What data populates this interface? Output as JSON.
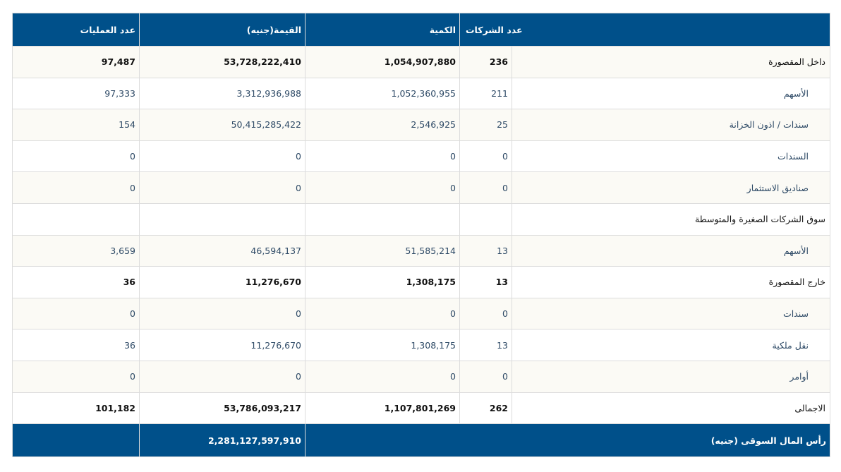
{
  "header": {
    "count": "عدد الشركات",
    "quantity": "الكمية",
    "value": "القيمة(جنيه)",
    "trades": "عدد العمليات"
  },
  "rows": [
    {
      "label": "داخل المقصورة",
      "count": "236",
      "quantity": "1,054,907,880",
      "value": "53,728,222,410",
      "trades": "97,487",
      "type": "bold"
    },
    {
      "label": "الأسهم",
      "count": "211",
      "quantity": "1,052,360,955",
      "value": "3,312,936,988",
      "trades": "97,333",
      "type": "sub"
    },
    {
      "label": "سندات / اذون الخزانة",
      "count": "25",
      "quantity": "2,546,925",
      "value": "50,415,285,422",
      "trades": "154",
      "type": "sub"
    },
    {
      "label": "السندات",
      "count": "0",
      "quantity": "0",
      "value": "0",
      "trades": "0",
      "type": "sub"
    },
    {
      "label": "صناديق الاستثمار",
      "count": "0",
      "quantity": "0",
      "value": "0",
      "trades": "0",
      "type": "sub"
    },
    {
      "label": "سوق الشركات الصغيرة والمتوسطة",
      "count": "",
      "quantity": "",
      "value": "",
      "trades": "",
      "type": "bold"
    },
    {
      "label": "الأسهم",
      "count": "13",
      "quantity": "51,585,214",
      "value": "46,594,137",
      "trades": "3,659",
      "type": "sub"
    },
    {
      "label": "خارج المقصورة",
      "count": "13",
      "quantity": "1,308,175",
      "value": "11,276,670",
      "trades": "36",
      "type": "bold"
    },
    {
      "label": "سندات",
      "count": "0",
      "quantity": "0",
      "value": "0",
      "trades": "0",
      "type": "sub"
    },
    {
      "label": "نقل ملكية",
      "count": "13",
      "quantity": "1,308,175",
      "value": "11,276,670",
      "trades": "36",
      "type": "sub"
    },
    {
      "label": "أوامر",
      "count": "0",
      "quantity": "0",
      "value": "0",
      "trades": "0",
      "type": "sub"
    },
    {
      "label": "الاجمالى",
      "count": "262",
      "quantity": "1,107,801,269",
      "value": "53,786,093,217",
      "trades": "101,182",
      "type": "bold"
    }
  ],
  "footer": {
    "label": "رأس المال السوقى (جنيه)",
    "value": "2,281,127,597,910"
  }
}
